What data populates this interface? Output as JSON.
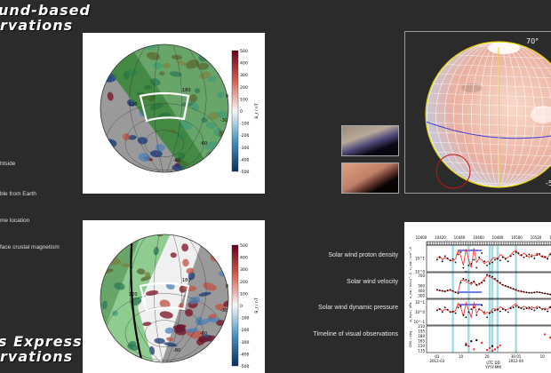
{
  "titles": {
    "top": [
      "und-based",
      "rvations"
    ],
    "bottom": [
      "s Express",
      "rvations"
    ]
  },
  "notes": [
    "htside",
    "ble from Earth",
    "me location",
    "face crustal magnetism"
  ],
  "maps": [
    {
      "lon_labels": [
        "120",
        "180",
        "0"
      ],
      "lat_labels": [
        "-30",
        "-60",
        "-80"
      ],
      "colorbar": {
        "ticks": [
          "500",
          "400",
          "300",
          "200",
          "100",
          "0",
          "-100",
          "-200",
          "-300",
          "-400",
          "-500"
        ],
        "label": "B_r / nT",
        "colors": [
          "#67001f",
          "#f7f7f7",
          "#053061"
        ]
      }
    },
    {
      "lon_labels": [
        "120",
        "180",
        "0"
      ],
      "lat_labels": [
        "-30",
        "-60",
        "-80"
      ],
      "colorbar": {
        "ticks": [
          "500",
          "400",
          "300",
          "200",
          "100",
          "0",
          "-100",
          "-200",
          "-300",
          "-400",
          "-500"
        ],
        "label": "B_r / nT",
        "colors": [
          "#67001f",
          "#f7f7f7",
          "#053061"
        ]
      }
    }
  ],
  "globe": {
    "labels": [
      "70°",
      "5",
      "-50°"
    ],
    "outline_color": "#e6d800",
    "equator_color": "#3a3ad0",
    "circle_color": "#cc1111"
  },
  "solar_wind_labels": [
    "Solar wind proton density",
    "Solar wind velocity",
    "Solar wind dynamic pressure",
    "Timeline of visual observations"
  ],
  "chart_data": {
    "type": "line",
    "top_axis_ticks": [
      "10400",
      "10420",
      "10440",
      "10460",
      "10480",
      "10500",
      "10520",
      "10540"
    ],
    "x_tick_labels": [
      [
        "01",
        "2012-03"
      ],
      [
        "10",
        ""
      ],
      [
        "20",
        ""
      ],
      [
        "30 01",
        "2012-04"
      ],
      [
        "10",
        ""
      ]
    ],
    "x_tick_dates": [
      "2012-03-01",
      "2012-03-10",
      "2012-03-20",
      "2012-03-31",
      "2012-04-10"
    ],
    "xlabel": [
      "UTC DD",
      "YYYY-MM"
    ],
    "x_start": "2012-03-01",
    "x_range": [
      "2012-02-26",
      "2012-04-15"
    ],
    "event_dates": [
      "2012-03-07",
      "2012-03-13",
      "2012-03-21",
      "2012-03-22",
      "2012-03-24",
      "2012-03-31"
    ],
    "interval": [
      "2012-03-09",
      "2012-03-18"
    ],
    "panels": [
      {
        "ylabel": "n_sw / cm^-3",
        "scale": "log",
        "ylim": [
          1,
          100
        ],
        "ticks": [
          "10^1",
          "10^0"
        ],
        "tick_values": [
          10,
          1
        ],
        "observed": [
          8,
          12,
          6,
          15,
          10,
          7,
          9,
          5,
          20,
          30,
          2,
          1,
          3,
          4,
          8,
          2,
          12,
          25,
          6,
          3,
          4,
          5,
          8,
          10,
          7,
          12,
          9,
          6,
          15,
          20,
          30,
          25,
          18,
          12,
          15,
          20,
          14,
          10,
          18,
          22,
          15,
          12,
          9,
          20,
          15,
          10
        ],
        "model": [
          10,
          15,
          8,
          12,
          9,
          8,
          6,
          10,
          40,
          15,
          3,
          50,
          8,
          2,
          60,
          5,
          10,
          8,
          4,
          6,
          5,
          10,
          12,
          8,
          20,
          15,
          10,
          12,
          18,
          30,
          40,
          20,
          15,
          25,
          18,
          12,
          20,
          15,
          25,
          18,
          12,
          15,
          10,
          25,
          12,
          8
        ]
      },
      {
        "ylabel": "v_sw / km s^-1",
        "scale": "linear",
        "ylim": [
          250,
          760
        ],
        "ticks": [
          "700",
          "500",
          "400",
          "300"
        ],
        "tick_values": [
          700,
          500,
          400,
          300
        ],
        "observed": [
          420,
          410,
          400,
          390,
          410,
          420,
          400,
          370,
          350,
          560,
          640,
          620,
          600,
          560,
          580,
          520,
          540,
          560,
          600,
          720,
          700,
          680,
          640,
          600,
          560,
          520,
          500,
          480,
          460,
          440,
          420,
          400,
          390,
          380,
          370,
          360,
          360,
          370,
          380,
          370,
          360,
          350,
          340,
          330,
          320,
          300
        ],
        "model": [
          410,
          400,
          395,
          385,
          400,
          410,
          390,
          360,
          380,
          600,
          620,
          580,
          560,
          520,
          600,
          500,
          520,
          580,
          640,
          700,
          680,
          650,
          620,
          580,
          540,
          510,
          490,
          470,
          450,
          430,
          410,
          395,
          385,
          375,
          365,
          360,
          355,
          365,
          375,
          365,
          355,
          345,
          335,
          325,
          315,
          295
        ]
      },
      {
        "ylabel": "p_dyn / nPa",
        "scale": "log",
        "ylim": [
          0.05,
          20
        ],
        "ticks": [
          "10^1",
          "10^0",
          "10^-1"
        ],
        "tick_values": [
          10,
          1,
          0.1
        ],
        "observed": [
          1.5,
          2,
          1,
          3,
          1.8,
          1,
          1.2,
          0.8,
          3,
          4,
          0.5,
          0.3,
          1,
          2,
          3,
          0.5,
          2,
          5,
          1,
          0.3,
          0.8,
          1,
          1.5,
          2,
          1.2,
          2,
          1.5,
          1,
          2.5,
          3,
          4,
          3,
          2.5,
          2,
          2.5,
          3,
          2,
          1.5,
          2.5,
          3,
          2,
          1.8,
          1.2,
          3,
          2,
          1.5
        ],
        "model": [
          1.8,
          2.5,
          1.2,
          2,
          1.5,
          1.2,
          0.9,
          1.5,
          8,
          3,
          0.4,
          9,
          1.5,
          0.3,
          10,
          0.8,
          2,
          1.5,
          0.6,
          1,
          0.8,
          2,
          2.2,
          1.4,
          3.5,
          2.5,
          1.8,
          2,
          3,
          5,
          7,
          3.5,
          2.5,
          4,
          3,
          2,
          3.5,
          2.5,
          4,
          3,
          2,
          2.5,
          1.8,
          4,
          2,
          1.3
        ]
      },
      {
        "ylabel": "CML / deg",
        "scale": "linear",
        "ylim": [
          130,
          212
        ],
        "ticks": [
          "210",
          "195",
          "180",
          "165",
          "150",
          "135"
        ],
        "tick_values": [
          210,
          195,
          180,
          165,
          150,
          135
        ],
        "points": [
          {
            "date": "2012-03-12",
            "cml": 158,
            "color": "red"
          },
          {
            "date": "2012-03-12",
            "cml": 153,
            "color": "black"
          },
          {
            "date": "2012-03-13",
            "cml": 150,
            "color": "red"
          },
          {
            "date": "2012-03-14",
            "cml": 165,
            "color": "black"
          },
          {
            "date": "2012-03-15",
            "cml": 140,
            "color": "red"
          },
          {
            "date": "2012-03-16",
            "cml": 168,
            "color": "black"
          },
          {
            "date": "2012-03-18",
            "cml": 160,
            "color": "red"
          },
          {
            "date": "2012-03-20",
            "cml": 138,
            "color": "red"
          },
          {
            "date": "2012-03-21",
            "cml": 144,
            "color": "red"
          },
          {
            "date": "2012-03-22",
            "cml": 136,
            "color": "red"
          },
          {
            "date": "2012-03-22",
            "cml": 150,
            "color": "black"
          },
          {
            "date": "2012-03-23",
            "cml": 140,
            "color": "red"
          },
          {
            "date": "2012-03-24",
            "cml": 146,
            "color": "red"
          },
          {
            "date": "2012-03-25",
            "cml": 152,
            "color": "red"
          },
          {
            "date": "2012-04-11",
            "cml": 186,
            "color": "red"
          },
          {
            "date": "2012-04-13",
            "cml": 176,
            "color": "red"
          }
        ]
      }
    ],
    "observed_color": "#000000",
    "model_color": "#ff2020",
    "event_color": "#8fd3dc",
    "interval_color": "#6f7ff0"
  }
}
